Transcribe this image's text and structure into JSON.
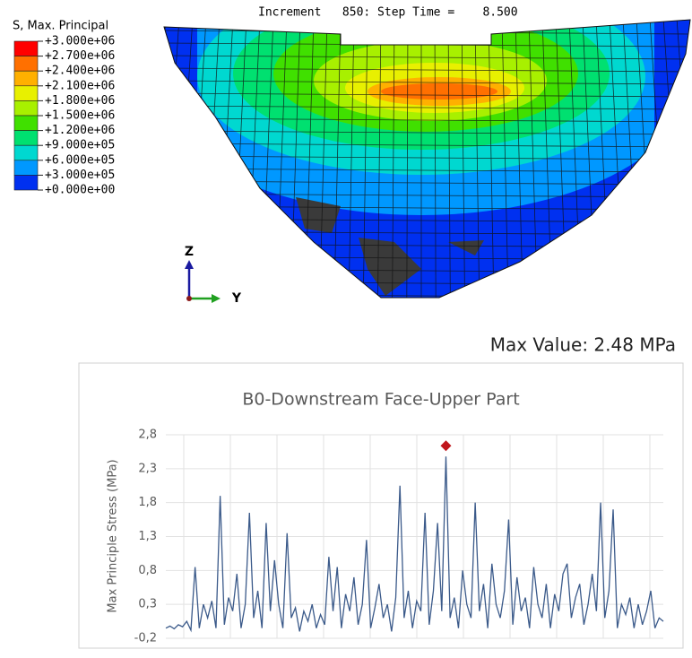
{
  "header": {
    "increment_text": "Increment   850: Step Time =    8.500"
  },
  "contour": {
    "title": "S, Max. Principal",
    "ticks": [
      {
        "value": 3000000,
        "label": "+3.000e+06"
      },
      {
        "value": 2700000,
        "label": "+2.700e+06"
      },
      {
        "value": 2400000,
        "label": "+2.400e+06"
      },
      {
        "value": 2100000,
        "label": "+2.100e+06"
      },
      {
        "value": 1800000,
        "label": "+1.800e+06"
      },
      {
        "value": 1500000,
        "label": "+1.500e+06"
      },
      {
        "value": 1200000,
        "label": "+1.200e+06"
      },
      {
        "value": 900000,
        "label": "+9.000e+05"
      },
      {
        "value": 600000,
        "label": "+6.000e+05"
      },
      {
        "value": 300000,
        "label": "+3.000e+05"
      },
      {
        "value": 0,
        "label": "+0.000e+00"
      }
    ],
    "colors": [
      "#ff0000",
      "#ff7000",
      "#ffb000",
      "#e8f000",
      "#a8f000",
      "#40e000",
      "#00e070",
      "#00d8d0",
      "#0098ff",
      "#0030f0"
    ]
  },
  "triad": {
    "z": "Z",
    "y": "Y"
  },
  "max_value_text": "Max Value: 2.48 MPa",
  "chart_data": {
    "type": "line",
    "title": "B0-Downstream Face-Upper Part",
    "y_label": "Max Principle Stress (MPa)",
    "ylim": [
      -0.2,
      2.8
    ],
    "yticks": [
      {
        "value": -0.2,
        "label": "-0,2"
      },
      {
        "value": 0.3,
        "label": "0,3"
      },
      {
        "value": 0.8,
        "label": "0,8"
      },
      {
        "value": 1.3,
        "label": "1,3"
      },
      {
        "value": 1.8,
        "label": "1,8"
      },
      {
        "value": 2.3,
        "label": "2,3"
      },
      {
        "value": 2.8,
        "label": "2,8"
      }
    ],
    "grid": true,
    "color": "#3b5a8a",
    "highlight": {
      "index": 67,
      "color": "#c0161c"
    },
    "values": [
      -0.05,
      -0.02,
      -0.06,
      0.0,
      -0.03,
      0.05,
      -0.08,
      0.85,
      -0.05,
      0.3,
      0.1,
      0.35,
      -0.05,
      1.9,
      0.0,
      0.4,
      0.2,
      0.75,
      -0.05,
      0.3,
      1.65,
      0.1,
      0.5,
      -0.05,
      1.5,
      0.2,
      0.95,
      0.3,
      -0.05,
      1.35,
      0.1,
      0.25,
      -0.1,
      0.2,
      0.05,
      0.3,
      -0.05,
      0.15,
      0.0,
      1.0,
      0.2,
      0.85,
      -0.05,
      0.45,
      0.2,
      0.7,
      0.0,
      0.3,
      1.25,
      -0.05,
      0.25,
      0.6,
      0.1,
      0.3,
      -0.1,
      0.4,
      2.05,
      0.1,
      0.5,
      -0.05,
      0.35,
      0.2,
      1.65,
      0.0,
      0.5,
      1.5,
      0.2,
      2.48,
      0.1,
      0.4,
      -0.05,
      0.8,
      0.3,
      0.1,
      1.8,
      0.2,
      0.6,
      -0.05,
      0.9,
      0.3,
      0.1,
      0.5,
      1.55,
      0.0,
      0.7,
      0.2,
      0.4,
      -0.05,
      0.85,
      0.3,
      0.1,
      0.6,
      -0.05,
      0.45,
      0.2,
      0.75,
      0.9,
      0.1,
      0.4,
      0.6,
      0.0,
      0.3,
      0.75,
      0.2,
      1.8,
      0.1,
      0.5,
      1.7,
      -0.05,
      0.3,
      0.15,
      0.4,
      -0.05,
      0.3,
      0.0,
      0.2,
      0.5,
      -0.05,
      0.1,
      0.05
    ]
  }
}
